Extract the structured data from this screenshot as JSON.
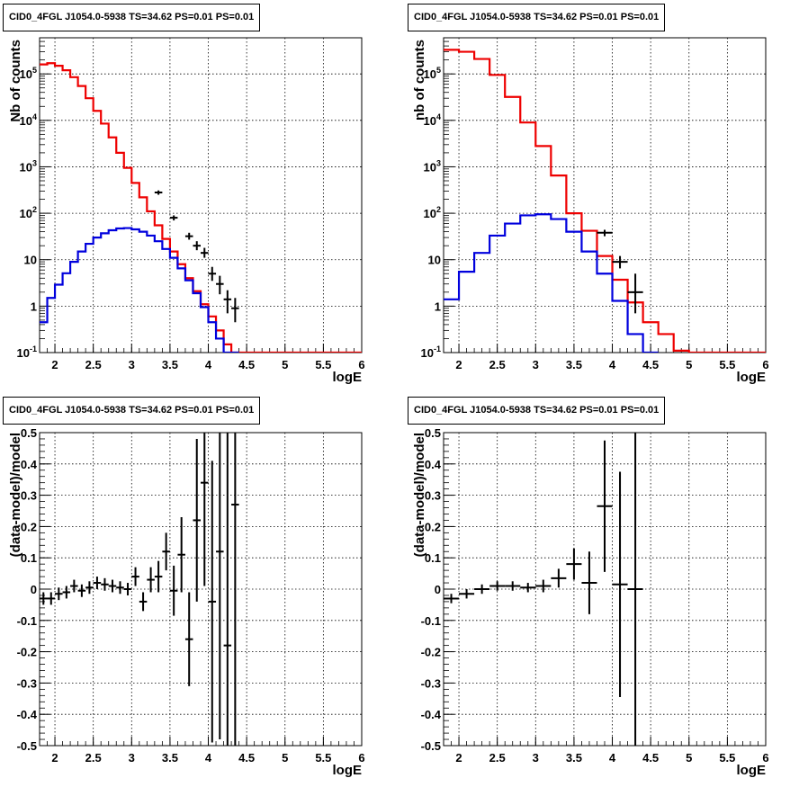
{
  "chart_data": [
    {
      "type": "line",
      "title": "CID0_4FGL J1054.0-5938 TS=34.62 PS=0.01 PS=0.01",
      "xlabel": "logE",
      "ylabel": "Nb of counts",
      "xlim": [
        1.8,
        6.0
      ],
      "ylim": [
        0.1,
        600000
      ],
      "yscale": "log",
      "grid": true,
      "xticks": [
        "2",
        "2.5",
        "3",
        "3.5",
        "4",
        "4.5",
        "5",
        "5.5",
        "6"
      ],
      "yticks": [
        "10^-1",
        "1",
        "10",
        "10^2",
        "10^3",
        "10^4",
        "10^5"
      ],
      "bin_width": 0.1,
      "series": [
        {
          "type": "step",
          "color": "#ee0000",
          "edges": [
            1.8,
            1.9,
            2.0,
            2.1,
            2.2,
            2.3,
            2.4,
            2.5,
            2.6,
            2.7,
            2.8,
            2.9,
            3.0,
            3.1,
            3.2,
            3.3,
            3.4,
            3.5,
            3.6,
            3.7,
            3.8,
            3.9,
            4.0,
            4.1,
            4.2,
            4.3,
            4.4,
            4.5,
            4.6,
            4.7,
            4.8,
            4.9,
            5.0,
            5.1,
            5.2,
            5.3,
            5.4,
            5.5,
            5.6,
            5.7,
            5.8,
            5.9,
            6.0
          ],
          "values": [
            160000,
            170000,
            150000,
            120000,
            85000,
            55000,
            30000,
            16000,
            8500,
            4300,
            2000,
            950,
            450,
            220,
            110,
            55,
            28,
            15,
            8,
            4,
            2.1,
            1.1,
            0.6,
            0.3,
            0.15,
            0.1,
            0.1,
            0.1,
            0.1,
            0.1,
            0.1,
            0.1,
            0.1,
            0.1,
            0.1,
            0.1,
            0.1,
            0.1,
            0.1,
            0.1,
            0.1,
            0.1
          ]
        },
        {
          "type": "step",
          "color": "#0000dd",
          "edges": [
            1.8,
            1.9,
            2.0,
            2.1,
            2.2,
            2.3,
            2.4,
            2.5,
            2.6,
            2.7,
            2.8,
            2.9,
            3.0,
            3.1,
            3.2,
            3.3,
            3.4,
            3.5,
            3.6,
            3.7,
            3.8,
            3.9,
            4.0,
            4.1,
            4.2,
            4.3,
            4.4
          ],
          "values": [
            0.45,
            1.5,
            2.9,
            5.1,
            9,
            15,
            22,
            30,
            37,
            43,
            47,
            48,
            45,
            40,
            33,
            25,
            17,
            11,
            6.5,
            3.6,
            1.9,
            0.95,
            0.45,
            0.2,
            0.1,
            0.1
          ]
        },
        {
          "type": "errorbar",
          "color": "#000000",
          "x": [
            3.35,
            3.55,
            3.75,
            3.85,
            3.95,
            4.05,
            4.15,
            4.25,
            4.35
          ],
          "y": [
            280,
            80,
            32,
            20,
            14,
            5,
            3,
            1.4,
            0.9
          ],
          "ylow": [
            250,
            70,
            27,
            16,
            11,
            3.5,
            1.8,
            0.7,
            0.45
          ],
          "yhigh": [
            310,
            90,
            38,
            25,
            18,
            7,
            4.5,
            2.2,
            1.5
          ],
          "xerr": 0.05
        }
      ]
    },
    {
      "type": "line",
      "title": "CID0_4FGL J1054.0-5938 TS=34.62 PS=0.01 PS=0.01",
      "xlabel": "logE",
      "ylabel": "nb of counts",
      "xlim": [
        1.8,
        6.0
      ],
      "ylim": [
        0.1,
        600000
      ],
      "yscale": "log",
      "grid": true,
      "xticks": [
        "2",
        "2.5",
        "3",
        "3.5",
        "4",
        "4.5",
        "5",
        "5.5",
        "6"
      ],
      "yticks": [
        "10^-1",
        "1",
        "10",
        "10^2",
        "10^3",
        "10^4",
        "10^5"
      ],
      "bin_width": 0.2,
      "series": [
        {
          "type": "step",
          "color": "#ee0000",
          "edges": [
            1.8,
            2.0,
            2.2,
            2.4,
            2.6,
            2.8,
            3.0,
            3.2,
            3.4,
            3.6,
            3.8,
            4.0,
            4.2,
            4.4,
            4.6,
            4.8,
            5.0,
            5.2,
            5.4,
            5.6,
            5.8,
            6.0
          ],
          "values": [
            330000,
            300000,
            210000,
            95000,
            32000,
            9000,
            2800,
            650,
            100,
            42,
            12,
            3.7,
            1.2,
            0.45,
            0.25,
            0.11,
            0.1,
            0.1,
            0.1,
            0.1,
            0.1
          ]
        },
        {
          "type": "step",
          "color": "#0000dd",
          "edges": [
            1.8,
            2.0,
            2.2,
            2.4,
            2.6,
            2.8,
            3.0,
            3.2,
            3.4,
            3.6,
            3.8,
            4.0,
            4.2,
            4.4,
            4.6
          ],
          "values": [
            1.4,
            5.5,
            14,
            33,
            60,
            90,
            95,
            75,
            40,
            15,
            5,
            1.3,
            0.25,
            0.1
          ]
        },
        {
          "type": "errorbar",
          "color": "#000000",
          "x": [
            3.9,
            4.1,
            4.3
          ],
          "y": [
            38,
            9,
            2
          ],
          "ylow": [
            32,
            6.5,
            0.7
          ],
          "yhigh": [
            44,
            12,
            5
          ],
          "xerr": 0.1
        }
      ]
    },
    {
      "type": "scatter",
      "title": "CID0_4FGL J1054.0-5938 TS=34.62 PS=0.01 PS=0.01",
      "xlabel": "logE",
      "ylabel": "(data-model)/model",
      "xlim": [
        1.8,
        6.0
      ],
      "ylim": [
        -0.5,
        0.5
      ],
      "grid": true,
      "xticks": [
        "2",
        "2.5",
        "3",
        "3.5",
        "4",
        "4.5",
        "5",
        "5.5",
        "6"
      ],
      "yticks": [
        "-0.5",
        "-0.4",
        "-0.3",
        "-0.2",
        "-0.1",
        "0",
        "0.1",
        "0.2",
        "0.3",
        "0.4",
        "0.5"
      ],
      "series": [
        {
          "type": "errorbar",
          "color": "#000000",
          "xerr": 0.05,
          "x": [
            1.85,
            1.95,
            2.05,
            2.15,
            2.25,
            2.35,
            2.45,
            2.55,
            2.65,
            2.75,
            2.85,
            2.95,
            3.05,
            3.15,
            3.25,
            3.35,
            3.45,
            3.55,
            3.65,
            3.75,
            3.85,
            3.95,
            4.05,
            4.15,
            4.25,
            4.35
          ],
          "y": [
            -0.03,
            -0.03,
            -0.015,
            -0.01,
            0.01,
            -0.005,
            0.005,
            0.02,
            0.015,
            0.01,
            0.005,
            0.0,
            0.04,
            -0.04,
            0.03,
            0.04,
            0.12,
            -0.005,
            0.11,
            -0.16,
            0.22,
            0.34,
            -0.04,
            0.12,
            -0.18,
            0.27
          ],
          "err": [
            0.02,
            0.02,
            0.02,
            0.02,
            0.02,
            0.02,
            0.02,
            0.02,
            0.02,
            0.02,
            0.02,
            0.02,
            0.03,
            0.03,
            0.04,
            0.05,
            0.06,
            0.08,
            0.12,
            0.15,
            0.26,
            0.33,
            0.45,
            0.6,
            0.8,
            1.0
          ]
        }
      ]
    },
    {
      "type": "scatter",
      "title": "CID0_4FGL J1054.0-5938 TS=34.62 PS=0.01 PS=0.01",
      "xlabel": "logE",
      "ylabel": "(data-model)/model",
      "xlim": [
        1.8,
        6.0
      ],
      "ylim": [
        -0.5,
        0.5
      ],
      "grid": true,
      "xticks": [
        "2",
        "2.5",
        "3",
        "3.5",
        "4",
        "4.5",
        "5",
        "5.5",
        "6"
      ],
      "yticks": [
        "-0.5",
        "-0.4",
        "-0.3",
        "-0.2",
        "-0.1",
        "0",
        "0.1",
        "0.2",
        "0.3",
        "0.4",
        "0.5"
      ],
      "series": [
        {
          "type": "errorbar",
          "color": "#000000",
          "xerr": 0.1,
          "x": [
            1.9,
            2.1,
            2.3,
            2.5,
            2.7,
            2.9,
            3.1,
            3.3,
            3.5,
            3.7,
            3.9,
            4.1,
            4.3
          ],
          "y": [
            -0.03,
            -0.015,
            0.0,
            0.01,
            0.01,
            0.005,
            0.01,
            0.035,
            0.08,
            0.02,
            0.265,
            0.015,
            0.0
          ],
          "err": [
            0.015,
            0.015,
            0.015,
            0.015,
            0.015,
            0.015,
            0.02,
            0.03,
            0.05,
            0.1,
            0.21,
            0.36,
            0.7
          ]
        }
      ]
    }
  ]
}
